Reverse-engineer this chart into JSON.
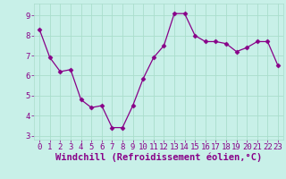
{
  "x": [
    0,
    1,
    2,
    3,
    4,
    5,
    6,
    7,
    8,
    9,
    10,
    11,
    12,
    13,
    14,
    15,
    16,
    17,
    18,
    19,
    20,
    21,
    22,
    23
  ],
  "y": [
    8.3,
    6.9,
    6.2,
    6.3,
    4.8,
    4.4,
    4.5,
    3.4,
    3.4,
    4.5,
    5.85,
    6.9,
    7.5,
    9.1,
    9.1,
    8.0,
    7.7,
    7.7,
    7.6,
    7.2,
    7.4,
    7.7,
    7.7,
    6.5
  ],
  "line_color": "#880088",
  "marker": "D",
  "marker_size": 2.5,
  "bg_color": "#c8f0e8",
  "grid_color": "#aaddcc",
  "xlabel": "Windchill (Refroidissement éolien,°C)",
  "label_color": "#880088",
  "tick_fontsize": 6.5,
  "xlabel_fontsize": 7.5,
  "ylim": [
    2.8,
    9.6
  ],
  "xlim": [
    -0.5,
    23.5
  ],
  "yticks": [
    3,
    4,
    5,
    6,
    7,
    8,
    9
  ],
  "xticks": [
    0,
    1,
    2,
    3,
    4,
    5,
    6,
    7,
    8,
    9,
    10,
    11,
    12,
    13,
    14,
    15,
    16,
    17,
    18,
    19,
    20,
    21,
    22,
    23
  ]
}
